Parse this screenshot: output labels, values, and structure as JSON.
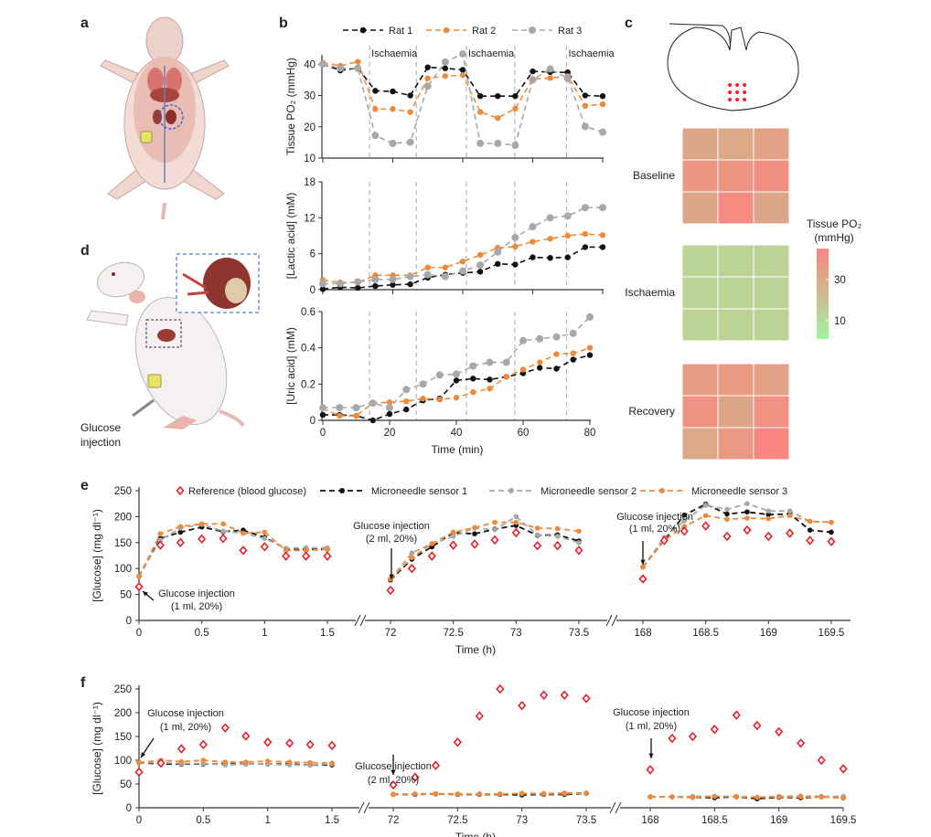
{
  "panel_labels": {
    "a": "a",
    "b": "b",
    "c": "c",
    "d": "d",
    "e": "e",
    "f": "f"
  },
  "panel_d": {
    "annotation_line1": "Glucose",
    "annotation_line2": "injection"
  },
  "colors": {
    "rat1": "#111111",
    "rat2": "#ef8a3c",
    "rat3": "#a8a8a8",
    "reference": "#e8202a",
    "sensor1": "#111111",
    "sensor2": "#a8a8a8",
    "sensor3": "#ef8a3c",
    "inset_box": "#2f55d4",
    "kidney_dots": "#e8202a"
  },
  "panel_b": {
    "legend": [
      "Rat 1",
      "Rat 2",
      "Rat 3"
    ],
    "ischaemia_labels": [
      "Ischaemia",
      "Ischaemia",
      "Ischaemia"
    ],
    "ischaemia_boundaries_min": [
      14,
      28,
      43,
      57.5,
      73
    ],
    "xlabel": "Time (min)",
    "xticks": [
      "0",
      "20",
      "40",
      "60",
      "80"
    ]
  },
  "chart_data": [
    {
      "type": "line",
      "panel": "b",
      "ylabel": "Tissue PO₂ (mmHg)",
      "xlim": [
        0,
        80
      ],
      "ylim": [
        10,
        43
      ],
      "yticks": [
        "10",
        "20",
        "30",
        "40"
      ],
      "ytick_values": [
        10,
        20,
        30,
        40
      ],
      "x": [
        0,
        5,
        10,
        15,
        20,
        25,
        30,
        35,
        40,
        45,
        50,
        55,
        60,
        65,
        70,
        75,
        80
      ],
      "series": [
        {
          "name": "Rat 1",
          "values": [
            40,
            38,
            38.8,
            31.5,
            31.3,
            30,
            39,
            38.7,
            38.2,
            29.8,
            29.8,
            29.8,
            37.7,
            37.5,
            37.4,
            30,
            29.8
          ]
        },
        {
          "name": "Rat 2",
          "values": [
            40.5,
            39.5,
            40.8,
            25.7,
            25.7,
            24.7,
            35.5,
            36.2,
            36.5,
            24.7,
            22.8,
            25.8,
            35.3,
            35.6,
            36.2,
            26.7,
            27.2
          ]
        },
        {
          "name": "Rat 3",
          "values": [
            40,
            38.7,
            38.7,
            17.2,
            14.7,
            15.1,
            33,
            40.7,
            43.3,
            14.7,
            14.7,
            14.1,
            35,
            38.5,
            35.5,
            20.1,
            18.3
          ]
        }
      ]
    },
    {
      "type": "line",
      "panel": "b",
      "ylabel": "[Lactic acid] (mM)",
      "xlim": [
        0,
        80
      ],
      "ylim": [
        0,
        18
      ],
      "yticks": [
        "0",
        "6",
        "12",
        "18"
      ],
      "ytick_values": [
        0,
        6,
        12,
        18
      ],
      "x": [
        0,
        5,
        10,
        15,
        20,
        25,
        30,
        35,
        40,
        45,
        50,
        55,
        60,
        65,
        70,
        75,
        80
      ],
      "series": [
        {
          "name": "Rat 1",
          "values": [
            0.1,
            0.4,
            0.3,
            0.6,
            0.8,
            0.9,
            2.0,
            2.5,
            2.8,
            3.0,
            4.3,
            4.2,
            5.4,
            5.3,
            5.4,
            7.1,
            7.1
          ]
        },
        {
          "name": "Rat 2",
          "values": [
            1.6,
            1.2,
            1.2,
            2.4,
            2.4,
            2.4,
            3.7,
            3.7,
            4.7,
            5.8,
            7.0,
            7.2,
            8.0,
            8.5,
            9.0,
            9.3,
            9.1
          ]
        },
        {
          "name": "Rat 3",
          "values": [
            1.0,
            1.0,
            1.3,
            1.7,
            1.7,
            2.2,
            2.5,
            2.2,
            3.1,
            4.1,
            6.3,
            8.7,
            10.5,
            12.0,
            12.3,
            13.7,
            13.7
          ]
        }
      ]
    },
    {
      "type": "line",
      "panel": "b",
      "ylabel": "[Uric acid] (mM)",
      "xlabel": "Time (min)",
      "xlim": [
        0,
        80
      ],
      "ylim": [
        0,
        0.6
      ],
      "yticks": [
        "0",
        "0.2",
        "0.4",
        "0.6"
      ],
      "ytick_values": [
        0,
        0.2,
        0.4,
        0.6
      ],
      "x": [
        0,
        5,
        10,
        15,
        20,
        25,
        30,
        35,
        40,
        45,
        50,
        55,
        60,
        65,
        70,
        75,
        80
      ],
      "series": [
        {
          "name": "Rat 1",
          "values": [
            0.03,
            0.03,
            0.025,
            0.0,
            0.035,
            0.06,
            0.11,
            0.12,
            0.22,
            0.23,
            0.225,
            0.24,
            0.26,
            0.29,
            0.285,
            0.335,
            0.36
          ]
        },
        {
          "name": "Rat 2",
          "values": [
            0.065,
            0.025,
            0.025,
            0.095,
            0.1,
            0.105,
            0.12,
            0.115,
            0.125,
            0.155,
            0.175,
            0.24,
            0.28,
            0.32,
            0.365,
            0.37,
            0.4
          ]
        },
        {
          "name": "Rat 3",
          "values": [
            0.07,
            0.07,
            0.07,
            0.095,
            0.07,
            0.17,
            0.2,
            0.25,
            0.255,
            0.3,
            0.32,
            0.32,
            0.44,
            0.45,
            0.46,
            0.48,
            0.57
          ]
        }
      ]
    },
    {
      "type": "heatmap",
      "panel": "c",
      "colorbar_title_line1": "Tissue PO₂",
      "colorbar_title_line2": "(mmHg)",
      "colorbar_ticks": [
        "30",
        "10"
      ],
      "colorbar_tick_values": [
        30,
        10
      ],
      "clim": [
        1,
        45
      ],
      "colormap": [
        "#a0f5a0",
        "#c9c08e",
        "#f98680"
      ],
      "conditions": [
        {
          "label": "Baseline",
          "values": [
            [
              31,
              30,
              33
            ],
            [
              38,
              39,
              41
            ],
            [
              31,
              43,
              31
            ]
          ]
        },
        {
          "label": "Ischaemia",
          "values": [
            [
              12,
              13,
              13
            ],
            [
              12,
              13,
              13
            ],
            [
              13,
              13,
              13
            ]
          ]
        },
        {
          "label": "Recovery",
          "values": [
            [
              36,
              37,
              33
            ],
            [
              40,
              31,
              40
            ],
            [
              30,
              37,
              45
            ]
          ]
        }
      ]
    },
    {
      "type": "scatter+line",
      "panel": "e",
      "ylabel": "[Glucose] (mg dl⁻¹)",
      "xlabel": "Time (h)",
      "ylim": [
        0,
        250
      ],
      "yticks": [
        "0",
        "50",
        "100",
        "150",
        "200",
        "250"
      ],
      "ytick_values": [
        0,
        50,
        100,
        150,
        200,
        250
      ],
      "legend": [
        "Reference (blood glucose)",
        "Microneedle sensor 1",
        "Microneedle sensor 2",
        "Microneedle sensor 3"
      ],
      "axis_breaks": true,
      "annotations": [
        {
          "line1": "Glucose injection",
          "line2": "(1 ml, 20%)"
        },
        {
          "line1": "Glucose injection",
          "line2": "(2 ml, 20%)"
        },
        {
          "line1": "Glucose injection",
          "line2": "(1 ml, 20%)"
        }
      ],
      "segments": [
        {
          "xlim": [
            0,
            1.5
          ],
          "xticks": [
            "0",
            "0.5",
            "1",
            "1.5"
          ],
          "xtick_values": [
            0,
            0.5,
            1,
            1.5
          ],
          "x": [
            0,
            0.17,
            0.33,
            0.5,
            0.67,
            0.83,
            1,
            1.17,
            1.33,
            1.5
          ],
          "reference": [
            65,
            145,
            150,
            157,
            158,
            135,
            142,
            124,
            124,
            124
          ],
          "sensor1": [
            85,
            158,
            170,
            180,
            171,
            174,
            160,
            138,
            137,
            137
          ],
          "sensor2": [
            85,
            155,
            178,
            185,
            172,
            168,
            158,
            139,
            140,
            140
          ],
          "sensor3": [
            85,
            167,
            181,
            186,
            186,
            168,
            170,
            135,
            135,
            137
          ]
        },
        {
          "xlim": [
            72,
            73.5
          ],
          "xticks": [
            "72",
            "72.5",
            "73",
            "73.5"
          ],
          "xtick_values": [
            72,
            72.5,
            73,
            73.5
          ],
          "x": [
            72,
            72.17,
            72.33,
            72.5,
            72.67,
            72.83,
            73,
            73.17,
            73.33,
            73.5
          ],
          "reference": [
            58,
            100,
            124,
            145,
            147,
            155,
            169,
            144,
            144,
            135
          ],
          "sensor1": [
            78,
            118,
            142,
            169,
            167,
            176,
            183,
            164,
            165,
            153
          ],
          "sensor2": [
            80,
            130,
            148,
            162,
            178,
            175,
            200,
            165,
            162,
            150
          ],
          "sensor3": [
            80,
            121,
            148,
            170,
            179,
            189,
            189,
            178,
            177,
            172
          ]
        },
        {
          "xlim": [
            168,
            169.5
          ],
          "xticks": [
            "168",
            "168.5",
            "169",
            "169.5"
          ],
          "xtick_values": [
            168,
            168.5,
            169,
            169.5
          ],
          "x": [
            168,
            168.17,
            168.33,
            168.5,
            168.67,
            168.83,
            169,
            169.17,
            169.33,
            169.5
          ],
          "reference": [
            80,
            154,
            172,
            182,
            162,
            174,
            162,
            168,
            154,
            152
          ],
          "sensor1": [
            103,
            154,
            203,
            224,
            205,
            209,
            204,
            205,
            174,
            170
          ],
          "sensor2": [
            103,
            160,
            192,
            222,
            214,
            225,
            211,
            211,
            191,
            189
          ],
          "sensor3": [
            103,
            154,
            181,
            202,
            195,
            197,
            196,
            202,
            191,
            189
          ]
        }
      ]
    },
    {
      "type": "scatter+line",
      "panel": "f",
      "ylabel": "[Glucose] (mg dl⁻¹)",
      "xlabel": "Time (h)",
      "ylim": [
        0,
        250
      ],
      "yticks": [
        "0",
        "50",
        "100",
        "150",
        "200",
        "250"
      ],
      "ytick_values": [
        0,
        50,
        100,
        150,
        200,
        250
      ],
      "axis_breaks": true,
      "annotations": [
        {
          "line1": "Glucose injection",
          "line2": "(1 ml, 20%)"
        },
        {
          "line1": "Glucose injection",
          "line2": "(2 ml, 20%)"
        },
        {
          "line1": "Glucose injection",
          "line2": "(1 ml, 20%)"
        }
      ],
      "segments": [
        {
          "xlim": [
            0,
            1.5
          ],
          "xticks": [
            "0",
            "0.5",
            "1",
            "1.5"
          ],
          "xtick_values": [
            0,
            0.5,
            1,
            1.5
          ],
          "x": [
            0,
            0.17,
            0.33,
            0.5,
            0.67,
            0.83,
            1,
            1.17,
            1.33,
            1.5
          ],
          "reference": [
            75,
            94,
            124,
            133,
            168,
            151,
            138,
            136,
            133,
            131
          ],
          "sensor1": [
            95,
            92,
            92,
            92,
            92,
            92,
            92,
            92,
            90,
            90
          ],
          "sensor2": [
            95,
            95,
            93,
            93,
            90,
            92,
            92,
            90,
            90,
            92
          ],
          "sensor3": [
            95,
            100,
            97,
            100,
            96,
            96,
            98,
            96,
            95,
            94
          ]
        },
        {
          "xlim": [
            72,
            73.5
          ],
          "xticks": [
            "72",
            "72.5",
            "73",
            "73.5"
          ],
          "xtick_values": [
            72,
            72.5,
            73,
            73.5
          ],
          "x": [
            72,
            72.17,
            72.33,
            72.5,
            72.67,
            72.83,
            73,
            73.17,
            73.33,
            73.5
          ],
          "reference": [
            48,
            64,
            89,
            138,
            193,
            250,
            215,
            237,
            237,
            230
          ],
          "sensor1": [
            28,
            28,
            29,
            28,
            28,
            28,
            27,
            28,
            28,
            30
          ],
          "sensor2": [
            29,
            29,
            30,
            29,
            29,
            29,
            30,
            29,
            30,
            30
          ],
          "sensor3": [
            28,
            29,
            29,
            29,
            29,
            29,
            30,
            30,
            31,
            31
          ]
        },
        {
          "xlim": [
            168,
            169.5
          ],
          "xticks": [
            "168",
            "168.5",
            "169",
            "169.5"
          ],
          "xtick_values": [
            168,
            168.5,
            169,
            169.5
          ],
          "x": [
            168,
            168.17,
            168.33,
            168.5,
            168.67,
            168.83,
            169,
            169.17,
            169.33,
            169.5
          ],
          "reference": [
            80,
            146,
            150,
            165,
            195,
            173,
            160,
            136,
            100,
            82
          ],
          "sensor1": [
            23,
            23,
            22,
            21,
            23,
            19,
            22,
            21,
            23,
            22
          ],
          "sensor2": [
            23,
            23,
            24,
            24,
            24,
            22,
            24,
            25,
            24,
            24
          ],
          "sensor3": [
            23,
            23,
            22,
            24,
            23,
            22,
            23,
            23,
            23,
            20
          ]
        }
      ]
    }
  ]
}
